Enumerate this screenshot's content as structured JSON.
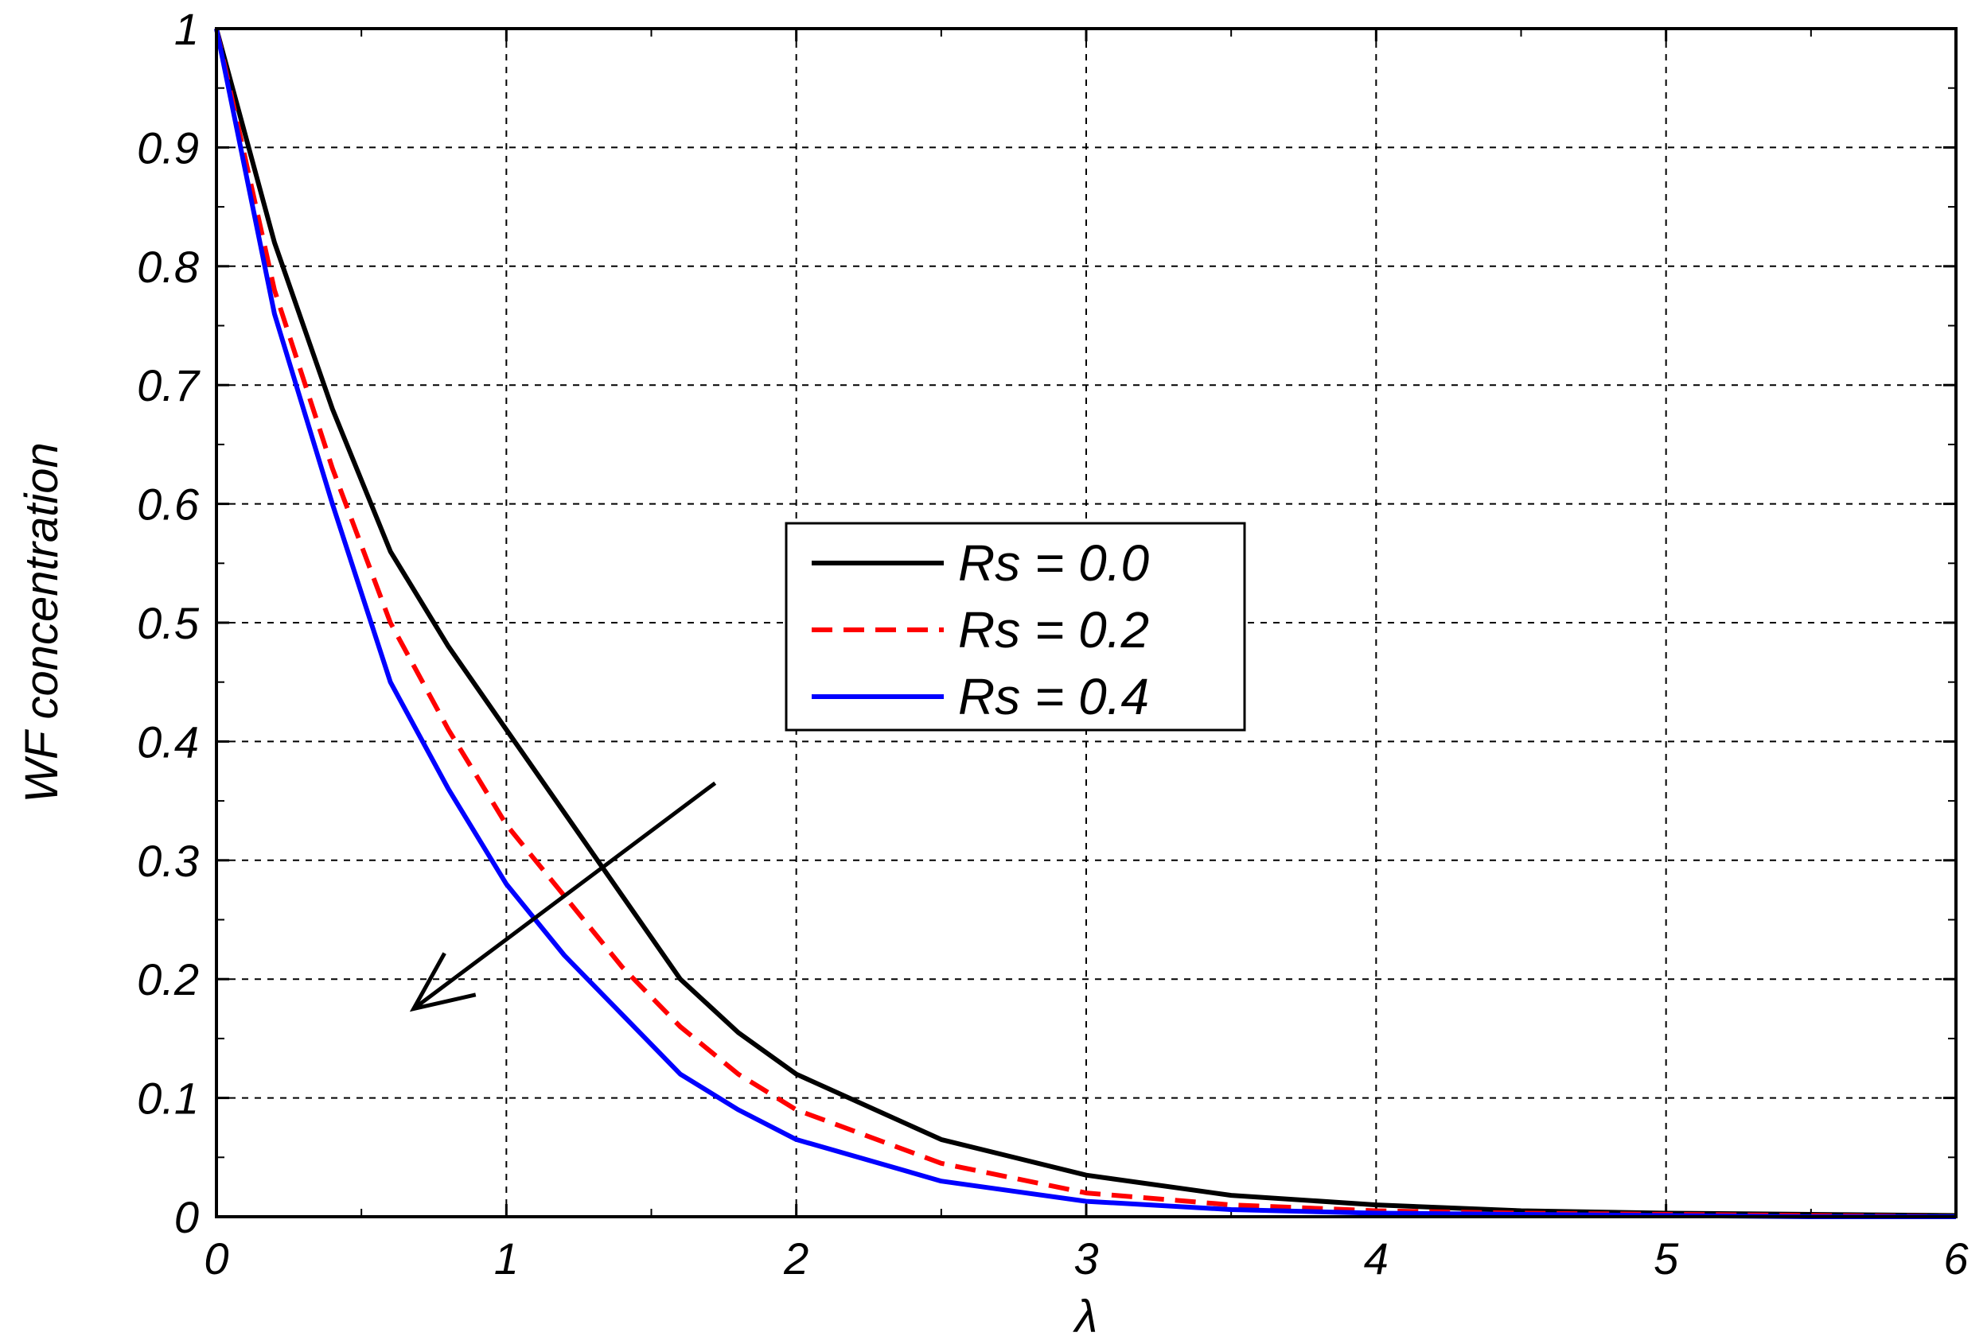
{
  "chart_data": {
    "type": "line",
    "title": "",
    "xlabel": "λ",
    "ylabel": "WF concentration",
    "xlim": [
      0,
      6
    ],
    "ylim": [
      0,
      1
    ],
    "xticks": [
      "0",
      "1",
      "2",
      "3",
      "4",
      "5",
      "6"
    ],
    "yticks": [
      "0",
      "0.1",
      "0.2",
      "0.3",
      "0.4",
      "0.5",
      "0.6",
      "0.7",
      "0.8",
      "0.9",
      "1"
    ],
    "grid": true,
    "legend_position": "center-right",
    "annotation": "arrow pointing in direction of increasing Rs (curves decrease)",
    "series": [
      {
        "name": "Rs = 0.0",
        "color": "#000000",
        "style": "solid",
        "x": [
          0,
          0.2,
          0.4,
          0.6,
          0.8,
          1.0,
          1.2,
          1.4,
          1.6,
          1.8,
          2.0,
          2.5,
          3.0,
          3.5,
          4.0,
          4.5,
          5.0,
          5.5,
          6.0
        ],
        "y": [
          1.0,
          0.82,
          0.68,
          0.56,
          0.48,
          0.41,
          0.34,
          0.27,
          0.2,
          0.155,
          0.12,
          0.065,
          0.035,
          0.018,
          0.01,
          0.005,
          0.003,
          0.002,
          0.001
        ]
      },
      {
        "name": "Rs = 0.2",
        "color": "#ff0000",
        "style": "dashed",
        "x": [
          0,
          0.2,
          0.4,
          0.6,
          0.8,
          1.0,
          1.2,
          1.4,
          1.6,
          1.8,
          2.0,
          2.5,
          3.0,
          3.5,
          4.0,
          4.5,
          5.0,
          5.5,
          6.0
        ],
        "y": [
          1.0,
          0.78,
          0.63,
          0.5,
          0.41,
          0.33,
          0.27,
          0.21,
          0.16,
          0.12,
          0.09,
          0.045,
          0.02,
          0.01,
          0.005,
          0.003,
          0.002,
          0.001,
          0.0
        ]
      },
      {
        "name": "Rs = 0.4",
        "color": "#0000ff",
        "style": "solid",
        "x": [
          0,
          0.2,
          0.4,
          0.6,
          0.8,
          1.0,
          1.2,
          1.4,
          1.6,
          1.8,
          2.0,
          2.5,
          3.0,
          3.5,
          4.0,
          4.5,
          5.0,
          5.5,
          6.0
        ],
        "y": [
          1.0,
          0.76,
          0.6,
          0.45,
          0.36,
          0.28,
          0.22,
          0.17,
          0.12,
          0.09,
          0.065,
          0.03,
          0.013,
          0.006,
          0.003,
          0.002,
          0.001,
          0.0,
          0.0
        ]
      }
    ],
    "arrow": {
      "from": [
        1.72,
        0.365
      ],
      "to": [
        0.68,
        0.175
      ]
    }
  }
}
